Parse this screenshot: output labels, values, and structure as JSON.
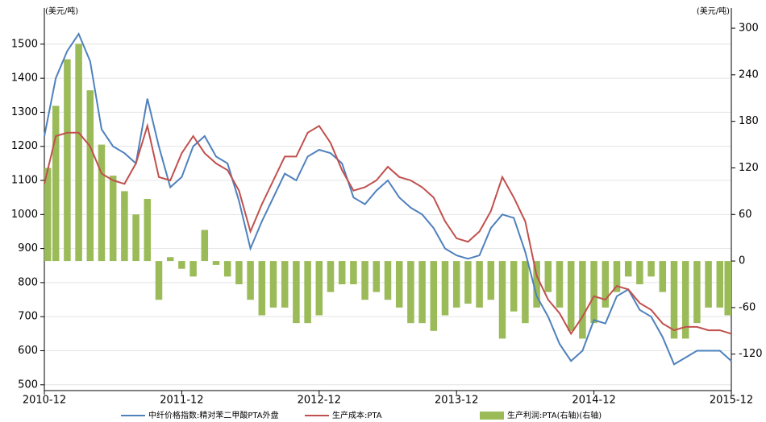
{
  "chart_data": {
    "type": "combo",
    "y_label": "(美元/吨)",
    "y2_label": "(美元/吨)",
    "x": [
      "2010-12",
      "2011-01",
      "2011-02",
      "2011-03",
      "2011-04",
      "2011-05",
      "2011-06",
      "2011-07",
      "2011-08",
      "2011-09",
      "2011-10",
      "2011-11",
      "2011-12",
      "2012-01",
      "2012-02",
      "2012-03",
      "2012-04",
      "2012-05",
      "2012-06",
      "2012-07",
      "2012-08",
      "2012-09",
      "2012-10",
      "2012-11",
      "2012-12",
      "2013-01",
      "2013-02",
      "2013-03",
      "2013-04",
      "2013-05",
      "2013-06",
      "2013-07",
      "2013-08",
      "2013-09",
      "2013-10",
      "2013-11",
      "2013-12",
      "2014-01",
      "2014-02",
      "2014-03",
      "2014-04",
      "2014-05",
      "2014-06",
      "2014-07",
      "2014-08",
      "2014-09",
      "2014-10",
      "2014-11",
      "2014-12",
      "2015-01",
      "2015-02",
      "2015-03",
      "2015-04",
      "2015-05",
      "2015-06",
      "2015-07",
      "2015-08",
      "2015-09",
      "2015-10",
      "2015-11",
      "2015-12"
    ],
    "xticks": [
      "2010-12",
      "2011-12",
      "2012-12",
      "2013-12",
      "2014-12",
      "2015-12"
    ],
    "ylim": [
      483,
      1606
    ],
    "yticks": [
      500,
      600,
      700,
      800,
      900,
      1000,
      1100,
      1200,
      1300,
      1400,
      1500
    ],
    "y2lim": [
      -167,
      326
    ],
    "y2ticks": [
      -120,
      -60,
      0,
      60,
      120,
      180,
      240,
      300
    ],
    "grid": true,
    "legend": "bottom",
    "series": [
      {
        "name": "生产利润:PTA(右轴)(右轴)",
        "type": "bar",
        "axis": "y2",
        "color": "#9bbb59",
        "values": [
          120,
          200,
          260,
          280,
          220,
          150,
          110,
          90,
          60,
          80,
          -50,
          5,
          -10,
          -20,
          40,
          -5,
          -20,
          -30,
          -50,
          -70,
          -60,
          -60,
          -80,
          -80,
          -70,
          -40,
          -30,
          -30,
          -50,
          -40,
          -50,
          -60,
          -80,
          -80,
          -90,
          -70,
          -60,
          -55,
          -60,
          -50,
          -100,
          -65,
          -80,
          -60,
          -40,
          -60,
          -90,
          -100,
          -80,
          -60,
          -40,
          -20,
          -30,
          -20,
          -40,
          -100,
          -100,
          -80,
          -60,
          -60,
          -70
        ]
      },
      {
        "name": "中纤价格指数:精对苯二甲酸PTA外盘",
        "type": "line",
        "color": "#4f81bd",
        "values": [
          1230,
          1400,
          1480,
          1530,
          1450,
          1250,
          1200,
          1180,
          1150,
          1340,
          1200,
          1080,
          1110,
          1200,
          1230,
          1170,
          1150,
          1040,
          900,
          980,
          1050,
          1120,
          1100,
          1170,
          1190,
          1180,
          1150,
          1050,
          1030,
          1070,
          1100,
          1050,
          1020,
          1000,
          960,
          900,
          880,
          870,
          880,
          960,
          1000,
          990,
          890,
          760,
          700,
          620,
          570,
          600,
          690,
          680,
          760,
          780,
          720,
          700,
          640,
          560,
          580,
          600,
          600,
          600,
          570
        ]
      },
      {
        "name": "生产成本:PTA",
        "type": "line",
        "color": "#c0504d",
        "values": [
          1090,
          1230,
          1240,
          1240,
          1200,
          1120,
          1100,
          1090,
          1150,
          1260,
          1110,
          1100,
          1180,
          1230,
          1180,
          1150,
          1130,
          1070,
          950,
          1030,
          1100,
          1170,
          1170,
          1240,
          1260,
          1210,
          1130,
          1070,
          1080,
          1100,
          1140,
          1110,
          1100,
          1080,
          1050,
          980,
          930,
          920,
          950,
          1010,
          1110,
          1050,
          980,
          820,
          750,
          710,
          650,
          700,
          760,
          750,
          790,
          780,
          740,
          720,
          680,
          660,
          670,
          670,
          660,
          660,
          650
        ]
      }
    ]
  }
}
